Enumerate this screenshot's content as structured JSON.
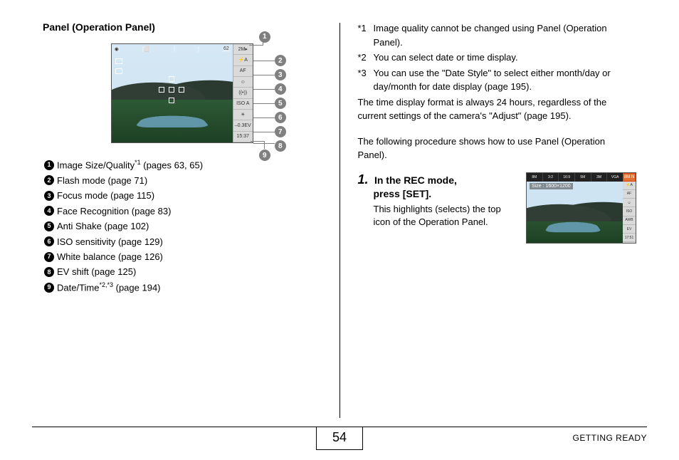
{
  "leftTitle": "Panel (Operation Panel)",
  "cameraSide": [
    "2M▸",
    "⚡A",
    "AF",
    "☺",
    "((•))",
    "ISO A",
    "☀",
    "–0.3EV",
    "15:37"
  ],
  "cameraTop": [
    "◉",
    "⬜",
    "",
    "",
    "62"
  ],
  "calloutsFirst": "1",
  "calloutsRight": [
    "2",
    "3",
    "4",
    "5",
    "6",
    "7",
    "8"
  ],
  "calloutBottom": "9",
  "items": [
    {
      "n": "1",
      "t": "Image Size/Quality",
      "sup": "*1",
      "p": " (pages 63, 65)"
    },
    {
      "n": "2",
      "t": "Flash mode (page 71)",
      "sup": "",
      "p": ""
    },
    {
      "n": "3",
      "t": "Focus mode (page 115)",
      "sup": "",
      "p": ""
    },
    {
      "n": "4",
      "t": "Face Recognition (page 83)",
      "sup": "",
      "p": ""
    },
    {
      "n": "5",
      "t": "Anti Shake (page 102)",
      "sup": "",
      "p": ""
    },
    {
      "n": "6",
      "t": "ISO sensitivity (page 129)",
      "sup": "",
      "p": ""
    },
    {
      "n": "7",
      "t": "White balance (page 126)",
      "sup": "",
      "p": ""
    },
    {
      "n": "8",
      "t": "EV shift (page 125)",
      "sup": "",
      "p": ""
    },
    {
      "n": "9",
      "t": "Date/Time",
      "sup": "*2,*3",
      "p": " (page 194)"
    }
  ],
  "notes": [
    {
      "k": "*1",
      "t": "Image quality cannot be changed using Panel (Operation Panel)."
    },
    {
      "k": "*2",
      "t": "You can select date or time display."
    },
    {
      "k": "*3",
      "t": "You can use the \"Date Style\" to select either month/day or day/month for date display (page 195)."
    }
  ],
  "noteExtra": "The time display format is always 24 hours, regardless of the current settings of the camera's \"Adjust\" (page 195).",
  "following": "The following procedure shows how to use Panel (Operation Panel).",
  "step": {
    "num": "1.",
    "title1": "In the REC mode,",
    "title2": "press [SET].",
    "desc": "This highlights (selects) the top icon of the Operation Panel."
  },
  "stepTop": [
    "8M",
    "3:2",
    "16:9",
    "5M",
    "3M",
    "VGA"
  ],
  "stepSel": "8M N",
  "stepOverlay": "Size : 1600×1200",
  "stepSide": [
    "⚡A",
    "AF",
    "☺",
    "ISO",
    "AWB",
    "EV",
    "17:51"
  ],
  "pageNum": "54",
  "sectionName": "GETTING READY"
}
